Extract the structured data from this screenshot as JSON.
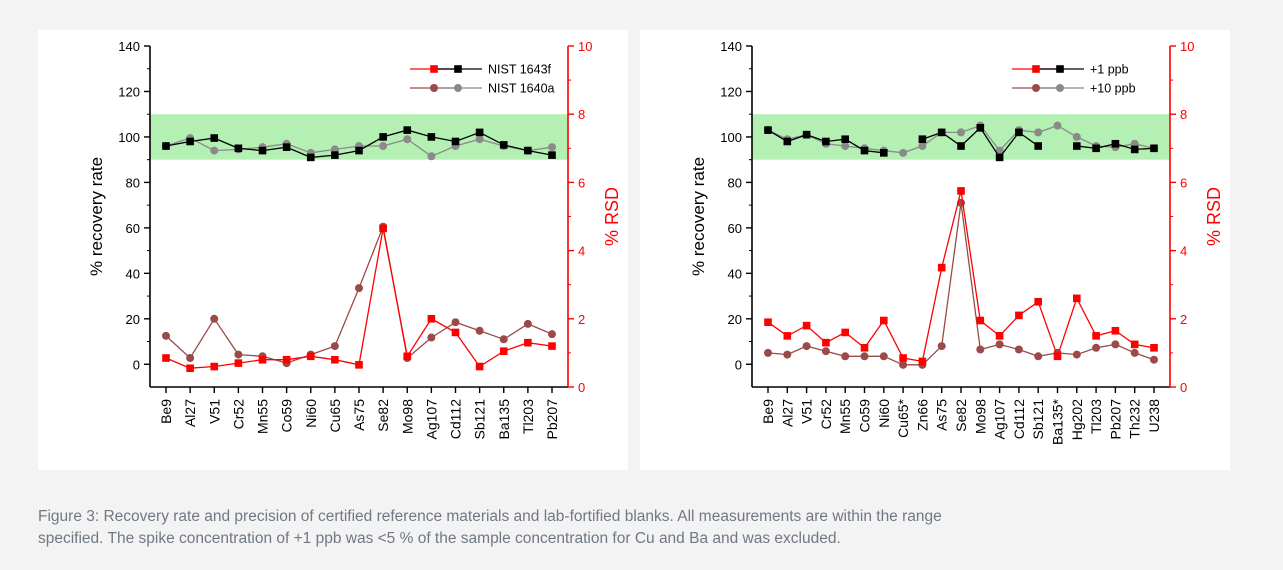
{
  "caption": {
    "line1": "Figure 3: Recovery rate and precision of certified reference materials and lab-fortified blanks. All measurements are within the range",
    "line2": "specified. The spike concentration of +1 ppb was <5 % of the sample concentration for Cu and Ba and was excluded."
  },
  "colors": {
    "recovery_a": "#000000",
    "recovery_b": "#8a8a8a",
    "rsd_a": "#ff0000",
    "rsd_b": "#9b4a4a",
    "band": "#b4f0b4",
    "right_axis": "#ff0000"
  },
  "chart_data": [
    {
      "type": "line",
      "ylabel": "% recovery rate",
      "y2label": "% RSD",
      "ylim": [
        -10,
        140
      ],
      "yticks": [
        0,
        20,
        40,
        60,
        80,
        100,
        120,
        140
      ],
      "y2lim": [
        0,
        10
      ],
      "y2ticks": [
        0,
        2,
        4,
        6,
        8,
        10
      ],
      "acceptance_band": [
        90,
        110
      ],
      "grid": false,
      "legend_position": "top-right",
      "categories": [
        "Be9",
        "Al27",
        "V51",
        "Cr52",
        "Mn55",
        "Co59",
        "Ni60",
        "Cu65",
        "As75",
        "Se82",
        "Mo98",
        "Ag107",
        "Cd112",
        "Sb121",
        "Ba135",
        "Tl203",
        "Pb207"
      ],
      "legend": [
        "NIST 1643f",
        "NIST 1640a"
      ],
      "recovery": [
        {
          "name": "NIST 1643f",
          "values": [
            96,
            98,
            99.5,
            95,
            94,
            95.5,
            91,
            92,
            94,
            100,
            103,
            100,
            98,
            102,
            96.5,
            94,
            92
          ]
        },
        {
          "name": "NIST 1640a",
          "values": [
            96,
            99.5,
            94,
            94.5,
            95.5,
            97,
            93,
            94.5,
            96,
            96,
            99,
            91.5,
            96,
            99,
            96,
            94,
            95.5
          ]
        }
      ],
      "rsd": [
        {
          "name": "NIST 1643f",
          "values": [
            0.85,
            0.55,
            0.6,
            0.7,
            0.8,
            0.8,
            0.9,
            0.8,
            0.65,
            4.65,
            0.9,
            2.0,
            1.6,
            0.6,
            1.05,
            1.3,
            1.2
          ]
        },
        {
          "name": "NIST 1640a",
          "values": [
            1.5,
            0.85,
            2.0,
            0.95,
            0.9,
            0.7,
            0.95,
            1.2,
            2.9,
            4.7,
            0.85,
            1.45,
            1.9,
            1.65,
            1.4,
            1.85,
            1.55
          ]
        }
      ]
    },
    {
      "type": "line",
      "ylabel": "% recovery rate",
      "y2label": "% RSD",
      "ylim": [
        -10,
        140
      ],
      "yticks": [
        0,
        20,
        40,
        60,
        80,
        100,
        120,
        140
      ],
      "y2lim": [
        0,
        10
      ],
      "y2ticks": [
        0,
        2,
        4,
        6,
        8,
        10
      ],
      "acceptance_band": [
        90,
        110
      ],
      "grid": false,
      "legend_position": "top-right",
      "categories": [
        "Be9",
        "Al27",
        "V51",
        "Cr52",
        "Mn55",
        "Co59",
        "Ni60",
        "Cu65*",
        "Zn66",
        "As75",
        "Se82",
        "Mo98",
        "Ag107",
        "Cd112",
        "Sb121",
        "Ba135*",
        "Hg202",
        "Tl203",
        "Pb207",
        "Th232",
        "U238"
      ],
      "legend": [
        "+1 ppb",
        "+10 ppb"
      ],
      "recovery": [
        {
          "name": "+1 ppb",
          "values": [
            103,
            98,
            101,
            98,
            99,
            94,
            93,
            null,
            99,
            102,
            96,
            104,
            91,
            102,
            96,
            null,
            96,
            95,
            97,
            94.5,
            95
          ]
        },
        {
          "name": "+10 ppb",
          "values": [
            103,
            99,
            101,
            97,
            96,
            95,
            94,
            93,
            96,
            102,
            102,
            105,
            94,
            103,
            102,
            105,
            100,
            96,
            95.5,
            97,
            95
          ]
        }
      ],
      "rsd": [
        {
          "name": "+1 ppb",
          "values": [
            1.9,
            1.5,
            1.8,
            1.3,
            1.6,
            1.15,
            1.95,
            0.85,
            0.75,
            3.5,
            5.75,
            1.95,
            1.5,
            2.1,
            2.5,
            0.9,
            2.6,
            1.5,
            1.65,
            1.25,
            1.15
          ]
        },
        {
          "name": "+10 ppb",
          "values": [
            1.0,
            0.95,
            1.2,
            1.05,
            0.9,
            0.9,
            0.9,
            0.65,
            0.65,
            1.2,
            5.4,
            1.1,
            1.25,
            1.1,
            0.9,
            1.0,
            0.95,
            1.15,
            1.25,
            1.0,
            0.8
          ]
        }
      ]
    }
  ]
}
